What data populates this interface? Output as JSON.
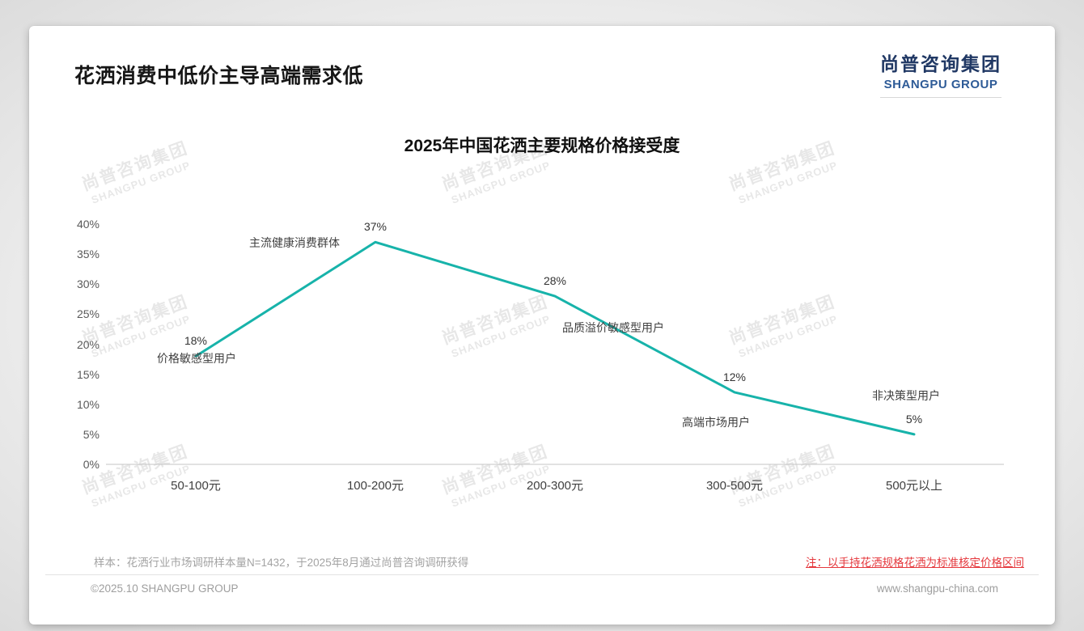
{
  "page": {
    "title": "花洒消费中低价主导高端需求低",
    "logo": {
      "cn": "尚普咨询集团",
      "en": "SHANGPU GROUP"
    },
    "watermark": {
      "cn": "尚普咨询集团",
      "en": "SHANGPU GROUP"
    },
    "notes": {
      "sample": "样本：花洒行业市场调研样本量N=1432，于2025年8月通过尚普咨询调研获得",
      "red": "注：以手持花洒规格花洒为标准核定价格区间"
    },
    "footer": {
      "left": "©2025.10 SHANGPU GROUP",
      "right": "www.shangpu-china.com"
    },
    "colors": {
      "logo_navy": "#203864",
      "logo_blue": "#2e5b97",
      "note_red": "#e5383d"
    }
  },
  "chart_data": {
    "type": "line",
    "title": "2025年中国花洒主要规格价格接受度",
    "categories": [
      "50-100元",
      "100-200元",
      "200-300元",
      "300-500元",
      "500元以上"
    ],
    "values": [
      18,
      37,
      28,
      12,
      5
    ],
    "value_labels": [
      "18%",
      "37%",
      "28%",
      "12%",
      "5%"
    ],
    "annotations": [
      "价格敏感型用户",
      "主流健康消费群体",
      "品质溢价敏感型用户",
      "高端市场用户",
      "非决策型用户"
    ],
    "ylabel_ticks": [
      "0%",
      "5%",
      "10%",
      "15%",
      "20%",
      "25%",
      "30%",
      "35%",
      "40%"
    ],
    "ylim": [
      0,
      40
    ],
    "ytick_step": 5,
    "xlabel": "",
    "ylabel": "",
    "grid": false,
    "legend": "none",
    "line_color": "#17b3aa"
  }
}
